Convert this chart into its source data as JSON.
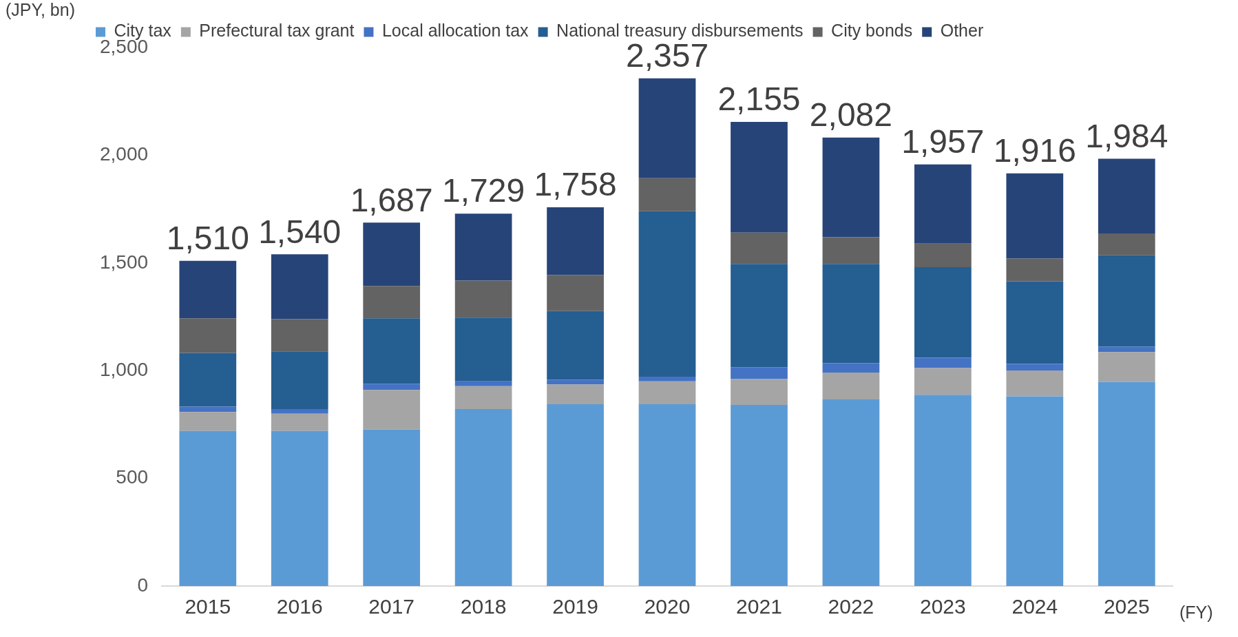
{
  "chart_data": {
    "type": "bar",
    "stacked": true,
    "xlabel": "(FY)",
    "ylabel": "(JPY, bn)",
    "legend": "top",
    "grid": false,
    "categories": [
      "2015",
      "2016",
      "2017",
      "2018",
      "2019",
      "2020",
      "2021",
      "2022",
      "2023",
      "2024",
      "2025"
    ],
    "ylim": [
      0,
      2500
    ],
    "yticks": [
      0,
      500,
      {
        "value": 1000,
        "label": "1,000"
      },
      {
        "value": 1500,
        "label": "1,500"
      },
      {
        "value": 2000,
        "label": "2,000"
      },
      {
        "value": 2500,
        "label": "2,500"
      }
    ],
    "series": [
      {
        "name": "City tax",
        "color": "#5b9bd5",
        "values": [
          720,
          720,
          727,
          822,
          844,
          844,
          841,
          866,
          888,
          881,
          947
        ]
      },
      {
        "name": "Prefectural tax grant",
        "color": "#a5a5a5",
        "values": [
          88,
          80,
          183,
          106,
          92,
          106,
          120,
          125,
          124,
          120,
          139
        ]
      },
      {
        "name": "Local allocation tax",
        "color": "#4472c4",
        "values": [
          25,
          22,
          29,
          22,
          22,
          22,
          55,
          43,
          48,
          30,
          25
        ]
      },
      {
        "name": "National treasury disbursements",
        "color": "#255e91",
        "values": [
          249,
          267,
          304,
          296,
          318,
          768,
          479,
          461,
          420,
          384,
          424
        ]
      },
      {
        "name": "City bonds",
        "color": "#636363",
        "values": [
          161,
          150,
          150,
          172,
          168,
          153,
          146,
          124,
          110,
          105,
          102
        ]
      },
      {
        "name": "Other",
        "color": "#264478",
        "values": [
          267,
          301,
          294,
          311,
          314,
          464,
          514,
          463,
          367,
          396,
          347
        ]
      }
    ],
    "totals": [
      "1,510",
      "1,540",
      "1,687",
      "1,729",
      "1,758",
      "2,357",
      "2,155",
      "2,082",
      "1,957",
      "1,916",
      "1,984"
    ]
  }
}
